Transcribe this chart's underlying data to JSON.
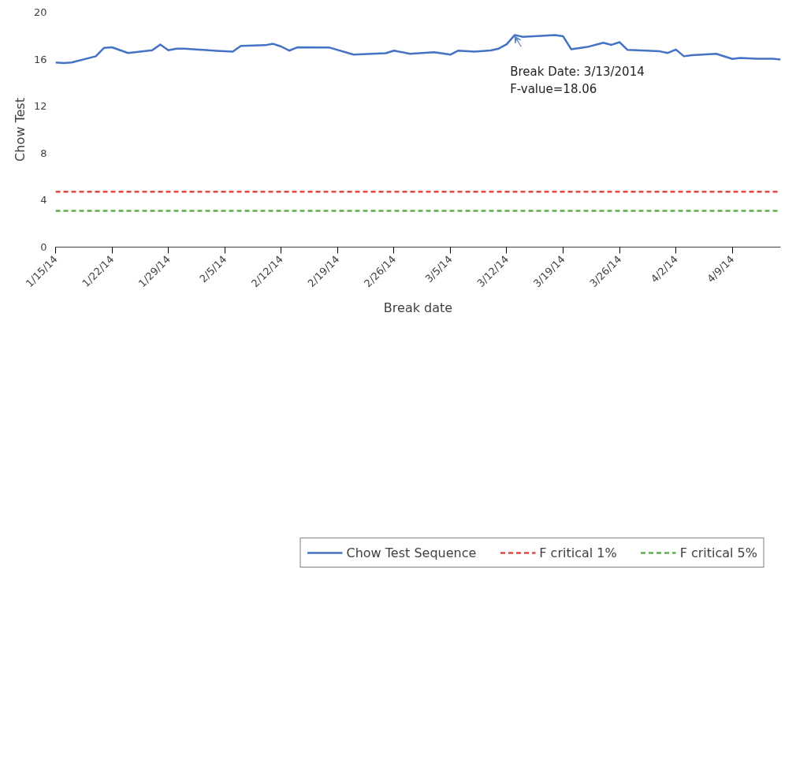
{
  "chart_data": {
    "type": "line",
    "xlabel": "Break date",
    "ylabel": "Chow Test",
    "xlim": [
      "2014-01-15",
      "2014-04-15"
    ],
    "xticks": [
      {
        "value": "2014-01-15",
        "label": "1/15/14"
      },
      {
        "value": "2014-01-22",
        "label": "1/22/14"
      },
      {
        "value": "2014-01-29",
        "label": "1/29/14"
      },
      {
        "value": "2014-02-05",
        "label": "2/5/14"
      },
      {
        "value": "2014-02-12",
        "label": "2/12/14"
      },
      {
        "value": "2014-02-19",
        "label": "2/19/14"
      },
      {
        "value": "2014-02-26",
        "label": "2/26/14"
      },
      {
        "value": "2014-03-05",
        "label": "3/5/14"
      },
      {
        "value": "2014-03-12",
        "label": "3/12/14"
      },
      {
        "value": "2014-03-19",
        "label": "3/19/14"
      },
      {
        "value": "2014-03-26",
        "label": "3/26/14"
      },
      {
        "value": "2014-04-02",
        "label": "4/2/14"
      },
      {
        "value": "2014-04-09",
        "label": "4/9/14"
      }
    ],
    "ylim": [
      0,
      20
    ],
    "yticks": [
      0,
      4,
      8,
      12,
      16,
      20
    ],
    "grid": false,
    "legend": "bottom",
    "marker": "none",
    "annotations": [
      {
        "text": "Break Date: 3/13/2014\nF-value=18.06",
        "x": "2014-03-13",
        "y": 18.06
      }
    ],
    "series": [
      {
        "name": "Chow Test Sequence",
        "color": "#4472c4",
        "line_style": "solid",
        "x": [
          "2014-01-15",
          "2014-01-16",
          "2014-01-17",
          "2014-01-20",
          "2014-01-21",
          "2014-01-22",
          "2014-01-24",
          "2014-01-27",
          "2014-01-28",
          "2014-01-29",
          "2014-01-30",
          "2014-01-31",
          "2014-02-04",
          "2014-02-06",
          "2014-02-07",
          "2014-02-10",
          "2014-02-11",
          "2014-02-12",
          "2014-02-13",
          "2014-02-14",
          "2014-02-18",
          "2014-02-21",
          "2014-02-25",
          "2014-02-26",
          "2014-02-28",
          "2014-03-03",
          "2014-03-05",
          "2014-03-06",
          "2014-03-08",
          "2014-03-10",
          "2014-03-11",
          "2014-03-12",
          "2014-03-13",
          "2014-03-14",
          "2014-03-18",
          "2014-03-19",
          "2014-03-20",
          "2014-03-22",
          "2014-03-24",
          "2014-03-25",
          "2014-03-26",
          "2014-03-27",
          "2014-03-31",
          "2014-04-01",
          "2014-04-02",
          "2014-04-03",
          "2014-04-04",
          "2014-04-07",
          "2014-04-09",
          "2014-04-10",
          "2014-04-12",
          "2014-04-14",
          "2014-04-15"
        ],
        "values": [
          15.72,
          15.67,
          15.72,
          16.25,
          16.96,
          17.01,
          16.53,
          16.76,
          17.25,
          16.76,
          16.9,
          16.9,
          16.71,
          16.64,
          17.13,
          17.19,
          17.31,
          17.08,
          16.73,
          17.01,
          16.99,
          16.39,
          16.51,
          16.73,
          16.46,
          16.59,
          16.39,
          16.73,
          16.65,
          16.74,
          16.9,
          17.27,
          18.06,
          17.9,
          18.05,
          17.95,
          16.85,
          17.04,
          17.4,
          17.22,
          17.45,
          16.79,
          16.67,
          16.53,
          16.82,
          16.25,
          16.34,
          16.46,
          16.02,
          16.11,
          16.04,
          16.04,
          15.97
        ]
      },
      {
        "name": "F critical 1%",
        "color": "#e0473f",
        "line_style": "dashed",
        "x": [
          "2014-01-15",
          "2014-04-15"
        ],
        "values": [
          4.72,
          4.72
        ]
      },
      {
        "name": "F critical 5%",
        "color": "#5fae4a",
        "line_style": "dashed",
        "x": [
          "2014-01-15",
          "2014-04-15"
        ],
        "values": [
          3.09,
          3.09
        ]
      }
    ]
  }
}
